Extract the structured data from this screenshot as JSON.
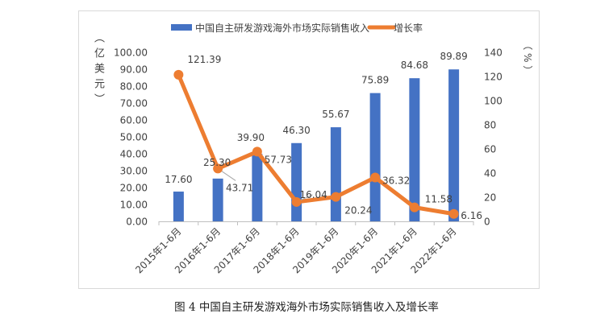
{
  "caption": "图 4 中国自主研发游戏海外市场实际销售收入及增长率",
  "chart_data": {
    "type": "bar+line",
    "categories": [
      "2015年1-6月",
      "2016年1-6月",
      "2017年1-6月",
      "2018年1-6月",
      "2019年1-6月",
      "2020年1-6月",
      "2021年1-6月",
      "2022年1-6月"
    ],
    "series": [
      {
        "name": "中国自主研发游戏海外市场实际销售收入",
        "type": "bar",
        "axis": "left",
        "color": "#4472C4",
        "values": [
          17.6,
          25.3,
          39.9,
          46.3,
          55.67,
          75.89,
          84.68,
          89.89
        ],
        "labels": [
          "17.60",
          "25.30",
          "39.90",
          "46.30",
          "55.67",
          "75.89",
          "84.68",
          "89.89"
        ]
      },
      {
        "name": "增长率",
        "type": "line",
        "axis": "right",
        "color": "#ED7D31",
        "values": [
          121.39,
          43.71,
          57.73,
          16.04,
          20.24,
          36.32,
          11.58,
          6.16
        ],
        "labels": [
          "121.39",
          "43.71",
          "57.73",
          "16.04",
          "20.24",
          "36.32",
          "11.58",
          "6.16"
        ]
      }
    ],
    "left_axis": {
      "label": "（亿美元）",
      "ylim": [
        0,
        100
      ],
      "ticks": [
        "0.00",
        "10.00",
        "20.00",
        "30.00",
        "40.00",
        "50.00",
        "60.00",
        "70.00",
        "80.00",
        "90.00",
        "100.00"
      ]
    },
    "right_axis": {
      "label": "（%）",
      "ylim": [
        0,
        140
      ],
      "ticks": [
        "0",
        "20",
        "40",
        "60",
        "80",
        "100",
        "120",
        "140"
      ]
    },
    "grid": false,
    "legend_placement": "top"
  }
}
